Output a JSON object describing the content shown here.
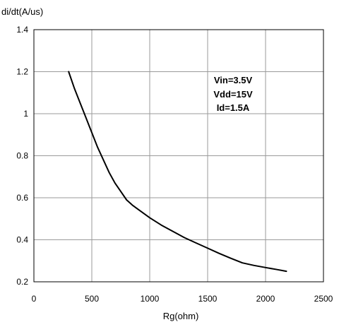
{
  "chart_data": {
    "type": "line",
    "title": "",
    "xlabel": "Rg(ohm)",
    "ylabel": "di/dt(A/us)",
    "xlim": [
      0,
      2500
    ],
    "ylim": [
      0.2,
      1.4
    ],
    "x_ticks": [
      0,
      500,
      1000,
      1500,
      2000,
      2500
    ],
    "y_ticks": [
      0.2,
      0.4,
      0.6,
      0.8,
      1.0,
      1.2,
      1.4
    ],
    "x_tick_labels": [
      "0",
      "500",
      "1000",
      "1500",
      "2000",
      "2500"
    ],
    "y_tick_labels": [
      "0.2",
      "0.4",
      "0.6",
      "0.8",
      "1",
      "1.2",
      "1.4"
    ],
    "grid": true,
    "annotations": [
      "Vin=3.5V",
      "Vdd=15V",
      "Id=1.5A"
    ],
    "series": [
      {
        "color": "#000000",
        "x": [
          300,
          350,
          400,
          450,
          500,
          550,
          600,
          650,
          700,
          750,
          800,
          850,
          900,
          1000,
          1100,
          1200,
          1300,
          1400,
          1500,
          1600,
          1700,
          1800,
          1900,
          2000,
          2100,
          2180
        ],
        "y": [
          1.2,
          1.12,
          1.05,
          0.98,
          0.91,
          0.84,
          0.78,
          0.72,
          0.67,
          0.63,
          0.59,
          0.565,
          0.545,
          0.505,
          0.47,
          0.44,
          0.41,
          0.385,
          0.36,
          0.335,
          0.312,
          0.29,
          0.278,
          0.268,
          0.258,
          0.25
        ]
      }
    ]
  }
}
